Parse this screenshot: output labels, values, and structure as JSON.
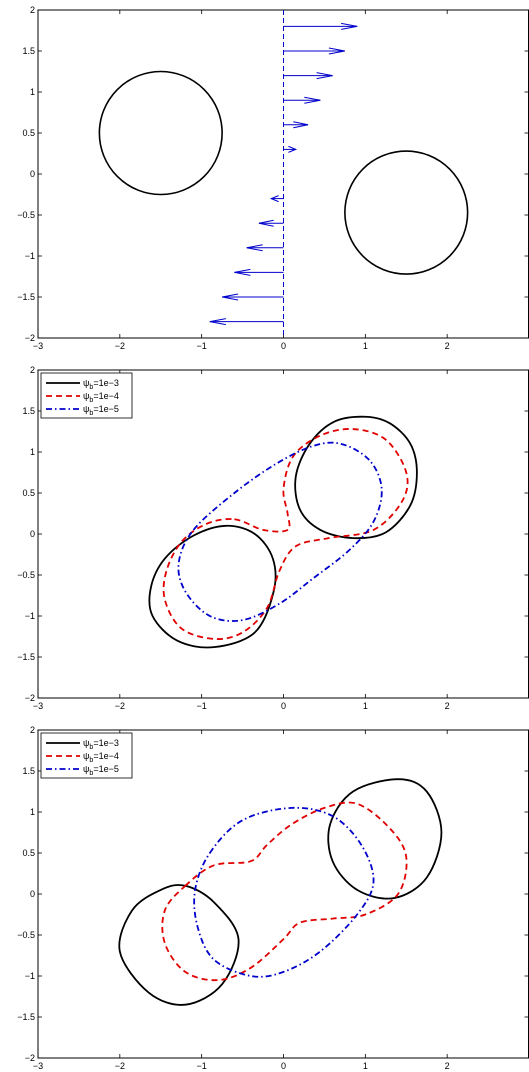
{
  "chart_data": [
    {
      "type": "line",
      "title": "",
      "xlabel": "",
      "ylabel": "",
      "xlim": [
        -3,
        3
      ],
      "ylim": [
        -2,
        2
      ],
      "x_ticks": [
        -3,
        -2,
        -1,
        0,
        1,
        2
      ],
      "y_ticks": [
        -2,
        -1.5,
        -1,
        -0.5,
        0,
        0.5,
        1,
        1.5,
        2
      ],
      "circles": [
        {
          "cx": -1.5,
          "cy": 0.5,
          "r": 0.75,
          "color": "#000000"
        },
        {
          "cx": 1.5,
          "cy": -0.47,
          "r": 0.75,
          "color": "#000000"
        }
      ],
      "divider": {
        "x": 0,
        "color": "#0000cc",
        "style": "dashed"
      },
      "shear_arrows": {
        "color": "#0000cc",
        "y": [
          1.8,
          1.5,
          1.2,
          0.9,
          0.6,
          0.3,
          -0.3,
          -0.6,
          -0.9,
          -1.2,
          -1.5,
          -1.8
        ],
        "u": [
          0.9,
          0.75,
          0.6,
          0.45,
          0.3,
          0.15,
          -0.15,
          -0.3,
          -0.45,
          -0.6,
          -0.75,
          -0.9
        ]
      },
      "legend": null
    },
    {
      "type": "line",
      "title": "",
      "xlabel": "",
      "ylabel": "",
      "xlim": [
        -3,
        3
      ],
      "ylim": [
        -2,
        2
      ],
      "x_ticks": [
        -3,
        -2,
        -1,
        0,
        1,
        2
      ],
      "y_ticks": [
        -2,
        -1.5,
        -1,
        -0.5,
        0,
        0.5,
        1,
        1.5,
        2
      ],
      "legend": {
        "placement": "top-left",
        "entries": [
          {
            "prefix": "ψ",
            "sub": "b",
            "suffix": "=1e−3"
          },
          {
            "prefix": "ψ",
            "sub": "b",
            "suffix": "=1e−4"
          },
          {
            "prefix": "ψ",
            "sub": "b",
            "suffix": "=1e−5"
          }
        ]
      },
      "series": [
        {
          "name": "ψb=1e−3",
          "color": "#000000",
          "style": "solid",
          "closed": true,
          "points": [
            [
              1.0,
              1.43
            ],
            [
              1.3,
              1.35
            ],
            [
              1.55,
              1.1
            ],
            [
              1.63,
              0.75
            ],
            [
              1.55,
              0.35
            ],
            [
              1.25,
              0.02
            ],
            [
              0.85,
              -0.05
            ],
            [
              0.45,
              0.05
            ],
            [
              0.2,
              0.3
            ],
            [
              0.15,
              0.7
            ],
            [
              0.32,
              1.1
            ],
            [
              0.62,
              1.37
            ]
          ],
          "points2": [
            [
              -0.7,
              0.1
            ],
            [
              -0.35,
              0.0
            ],
            [
              -0.13,
              -0.3
            ],
            [
              -0.12,
              -0.7
            ],
            [
              -0.35,
              -1.2
            ],
            [
              -0.85,
              -1.38
            ],
            [
              -1.3,
              -1.3
            ],
            [
              -1.6,
              -1.0
            ],
            [
              -1.62,
              -0.65
            ],
            [
              -1.45,
              -0.3
            ],
            [
              -1.1,
              -0.02
            ]
          ]
        },
        {
          "name": "ψb=1e−4",
          "color": "#e00000",
          "style": "dashed",
          "closed": true,
          "points": [
            [
              -0.6,
              0.18
            ],
            [
              -0.25,
              0.05
            ],
            [
              0.05,
              0.05
            ],
            [
              0.05,
              0.25
            ],
            [
              0.0,
              0.55
            ],
            [
              0.12,
              0.95
            ],
            [
              0.45,
              1.2
            ],
            [
              0.85,
              1.28
            ],
            [
              1.25,
              1.15
            ],
            [
              1.5,
              0.75
            ],
            [
              1.45,
              0.4
            ],
            [
              1.1,
              0.05
            ],
            [
              0.55,
              -0.05
            ],
            [
              0.15,
              -0.15
            ],
            [
              -0.05,
              -0.45
            ],
            [
              -0.2,
              -0.9
            ],
            [
              -0.5,
              -1.2
            ],
            [
              -0.85,
              -1.28
            ],
            [
              -1.25,
              -1.15
            ],
            [
              -1.45,
              -0.8
            ],
            [
              -1.43,
              -0.45
            ],
            [
              -1.25,
              -0.1
            ],
            [
              -0.95,
              0.12
            ]
          ]
        },
        {
          "name": "ψb=1e−5",
          "color": "#0000cc",
          "style": "dashdot",
          "closed": true,
          "points": [
            [
              -1.1,
              0.05
            ],
            [
              -0.6,
              0.5
            ],
            [
              -0.1,
              0.85
            ],
            [
              0.35,
              1.07
            ],
            [
              0.7,
              1.1
            ],
            [
              1.05,
              0.9
            ],
            [
              1.2,
              0.55
            ],
            [
              1.1,
              0.15
            ],
            [
              0.8,
              -0.2
            ],
            [
              0.35,
              -0.55
            ],
            [
              -0.05,
              -0.85
            ],
            [
              -0.5,
              -1.05
            ],
            [
              -0.9,
              -1.0
            ],
            [
              -1.2,
              -0.7
            ],
            [
              -1.28,
              -0.35
            ]
          ]
        }
      ]
    },
    {
      "type": "line",
      "title": "",
      "xlabel": "",
      "ylabel": "",
      "xlim": [
        -3,
        3
      ],
      "ylim": [
        -2,
        2
      ],
      "x_ticks": [
        -3,
        -2,
        -1,
        0,
        1,
        2
      ],
      "y_ticks": [
        -2,
        -1.5,
        -1,
        -0.5,
        0,
        0.5,
        1,
        1.5,
        2
      ],
      "legend": {
        "placement": "top-left",
        "entries": [
          {
            "prefix": "ψ",
            "sub": "b",
            "suffix": "=1e−3"
          },
          {
            "prefix": "ψ",
            "sub": "b",
            "suffix": "=1e−4"
          },
          {
            "prefix": "ψ",
            "sub": "b",
            "suffix": "=1e−5"
          }
        ]
      },
      "series": [
        {
          "name": "ψb=1e−3",
          "color": "#000000",
          "style": "solid",
          "closed": true,
          "points": [
            [
              1.4,
              1.4
            ],
            [
              1.75,
              1.25
            ],
            [
              1.93,
              0.75
            ],
            [
              1.75,
              0.2
            ],
            [
              1.35,
              -0.05
            ],
            [
              0.9,
              0.05
            ],
            [
              0.6,
              0.4
            ],
            [
              0.57,
              0.85
            ],
            [
              0.85,
              1.25
            ]
          ],
          "points2": [
            [
              -1.2,
              0.1
            ],
            [
              -0.85,
              -0.1
            ],
            [
              -0.55,
              -0.55
            ],
            [
              -0.75,
              -1.1
            ],
            [
              -1.2,
              -1.35
            ],
            [
              -1.65,
              -1.2
            ],
            [
              -2.0,
              -0.7
            ],
            [
              -1.85,
              -0.2
            ],
            [
              -1.5,
              0.05
            ]
          ]
        },
        {
          "name": "ψb=1e−4",
          "color": "#e00000",
          "style": "dashed",
          "closed": true,
          "points": [
            [
              -1.2,
              0.1
            ],
            [
              -0.85,
              0.35
            ],
            [
              -0.4,
              0.4
            ],
            [
              -0.2,
              0.6
            ],
            [
              0.1,
              0.85
            ],
            [
              0.5,
              1.05
            ],
            [
              0.9,
              1.1
            ],
            [
              1.3,
              0.8
            ],
            [
              1.5,
              0.45
            ],
            [
              1.4,
              0.0
            ],
            [
              1.0,
              -0.25
            ],
            [
              0.6,
              -0.3
            ],
            [
              0.2,
              -0.35
            ],
            [
              0.0,
              -0.55
            ],
            [
              -0.4,
              -0.9
            ],
            [
              -0.8,
              -1.05
            ],
            [
              -1.2,
              -0.95
            ],
            [
              -1.45,
              -0.6
            ],
            [
              -1.45,
              -0.2
            ]
          ]
        },
        {
          "name": "ψb=1e−5",
          "color": "#0000cc",
          "style": "dashdot",
          "closed": true,
          "points": [
            [
              -0.9,
              0.5
            ],
            [
              -0.5,
              0.9
            ],
            [
              0.1,
              1.05
            ],
            [
              0.6,
              0.95
            ],
            [
              0.95,
              0.6
            ],
            [
              1.1,
              0.15
            ],
            [
              0.9,
              -0.25
            ],
            [
              0.45,
              -0.7
            ],
            [
              0.0,
              -0.95
            ],
            [
              -0.4,
              -1.0
            ],
            [
              -0.85,
              -0.8
            ],
            [
              -1.05,
              -0.4
            ],
            [
              -1.08,
              0.05
            ]
          ]
        }
      ]
    }
  ]
}
